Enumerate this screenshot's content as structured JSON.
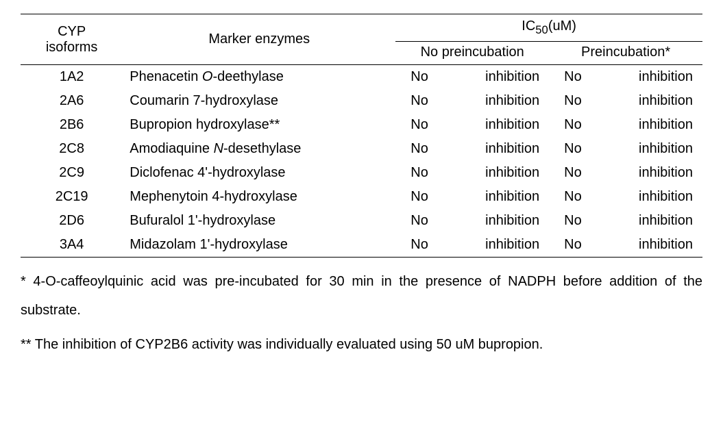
{
  "table": {
    "header": {
      "col1_line1": "CYP",
      "col1_line2": "isoforms",
      "col2": "Marker enzymes",
      "col3": "IC",
      "col3_sub": "50",
      "col3_unit": "(uM)",
      "sub_col1": "No preincubation",
      "sub_col2": "Preincubation*"
    },
    "rows": [
      {
        "iso": "1A2",
        "enzyme_pre": "Phenacetin ",
        "enzyme_it": "O",
        "enzyme_post": "-deethylase",
        "no_pre_a": "No",
        "no_pre_b": "inhibition",
        "pre_a": "No",
        "pre_b": "inhibition"
      },
      {
        "iso": "2A6",
        "enzyme_pre": "Coumarin 7-hydroxylase",
        "enzyme_it": "",
        "enzyme_post": "",
        "no_pre_a": "No",
        "no_pre_b": "inhibition",
        "pre_a": "No",
        "pre_b": "inhibition"
      },
      {
        "iso": "2B6",
        "enzyme_pre": "Bupropion hydroxylase**",
        "enzyme_it": "",
        "enzyme_post": "",
        "no_pre_a": "No",
        "no_pre_b": "inhibition",
        "pre_a": "No",
        "pre_b": "inhibition"
      },
      {
        "iso": "2C8",
        "enzyme_pre": "Amodiaquine ",
        "enzyme_it": "N",
        "enzyme_post": "-desethylase",
        "no_pre_a": "No",
        "no_pre_b": "inhibition",
        "pre_a": "No",
        "pre_b": "inhibition"
      },
      {
        "iso": "2C9",
        "enzyme_pre": "Diclofenac 4'-hydroxylase",
        "enzyme_it": "",
        "enzyme_post": "",
        "no_pre_a": "No",
        "no_pre_b": "inhibition",
        "pre_a": "No",
        "pre_b": "inhibition"
      },
      {
        "iso": "2C19",
        "enzyme_pre": "Mephenytoin 4-hydroxylase",
        "enzyme_it": "",
        "enzyme_post": "",
        "no_pre_a": "No",
        "no_pre_b": "inhibition",
        "pre_a": "No",
        "pre_b": "inhibition"
      },
      {
        "iso": "2D6",
        "enzyme_pre": "Bufuralol 1'-hydroxylase",
        "enzyme_it": "",
        "enzyme_post": "",
        "no_pre_a": "No",
        "no_pre_b": "inhibition",
        "pre_a": "No",
        "pre_b": "inhibition"
      },
      {
        "iso": "3A4",
        "enzyme_pre": "Midazolam 1'-hydroxylase",
        "enzyme_it": "",
        "enzyme_post": "",
        "no_pre_a": "No",
        "no_pre_b": "inhibition",
        "pre_a": "No",
        "pre_b": "inhibition"
      }
    ]
  },
  "footnotes": {
    "note1": "* 4-O-caffeoylquinic acid was pre-incubated for 30 min in the presence of NADPH before addition of the substrate.",
    "note2": "** The inhibition of CYP2B6 activity was individually evaluated using 50 uM bupropion."
  }
}
